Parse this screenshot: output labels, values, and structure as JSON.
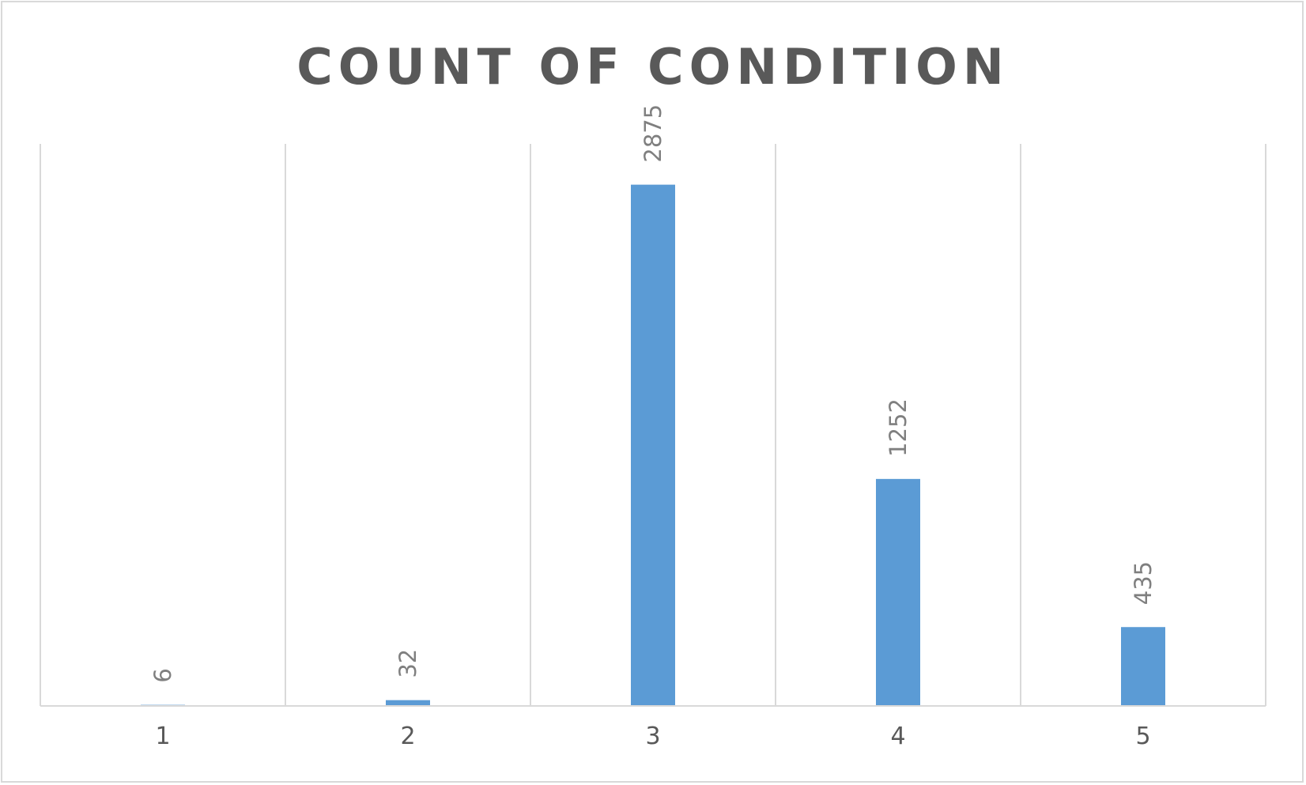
{
  "chart_data": {
    "type": "bar",
    "title": "COUNT OF CONDITION",
    "xlabel": "",
    "ylabel": "",
    "categories": [
      "1",
      "2",
      "3",
      "4",
      "5"
    ],
    "values": [
      6,
      32,
      2875,
      1252,
      435
    ],
    "data_labels": [
      "6",
      "32",
      "2875",
      "1252",
      "435"
    ],
    "ylim": [
      0,
      3100
    ],
    "grid": "vertical",
    "legend": "none",
    "bar_color": "#5b9bd5",
    "grid_color": "#d9d9d9",
    "text_color": "#595959",
    "label_color": "#7f7f7f"
  }
}
